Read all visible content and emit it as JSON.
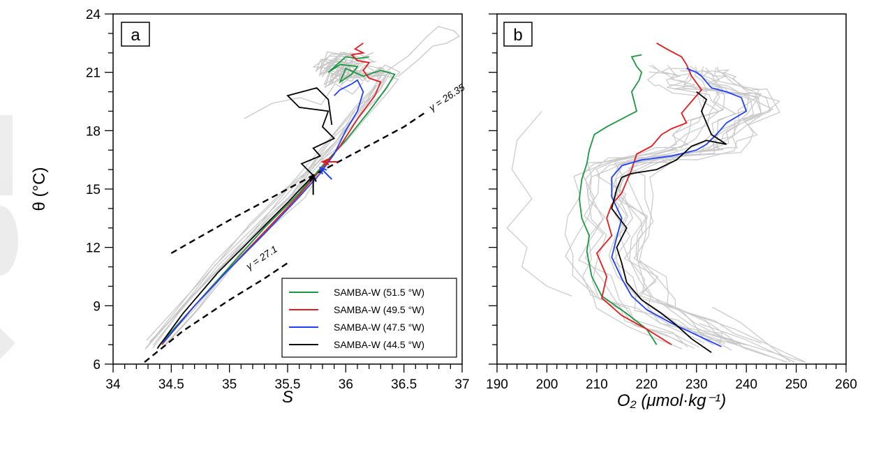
{
  "chart_data": [
    {
      "type": "line",
      "panel": "a",
      "xlabel": "S",
      "ylabel": "θ (°C)",
      "xlim": [
        34,
        37
      ],
      "ylim": [
        6,
        24
      ],
      "xticks": [
        34,
        34.5,
        35,
        35.5,
        36,
        36.5,
        37
      ],
      "xtick_labels": [
        "34",
        "34.5",
        "35",
        "35.5",
        "36",
        "36.5",
        "37"
      ],
      "yticks": [
        6,
        9,
        12,
        15,
        18,
        21,
        24
      ],
      "ytick_labels": [
        "6",
        "9",
        "12",
        "15",
        "18",
        "21",
        "24"
      ],
      "legend": {
        "position": "lower-right",
        "entries": [
          "SAMBA-W (51.5 °W)",
          "SAMBA-W (49.5 °W)",
          "SAMBA-W (47.5 °W)",
          "SAMBA-W (44.5 °W)"
        ]
      },
      "isopycnals": [
        {
          "label": "γ = 26.35",
          "x": [
            34.5,
            35.0,
            35.5,
            36.0,
            36.5,
            36.7
          ],
          "y": [
            11.7,
            13.4,
            15.0,
            16.6,
            18.2,
            19.0
          ]
        },
        {
          "label": "γ = 27.1",
          "x": [
            34.27,
            34.6,
            35.0,
            35.3,
            35.5
          ],
          "y": [
            6.1,
            7.7,
            9.3,
            10.4,
            11.2
          ]
        }
      ],
      "arrows": [
        {
          "color": "#e41a1c",
          "tip": [
            35.8,
            16.4
          ],
          "from": [
            35.93,
            16.4
          ]
        },
        {
          "color": "#1f3fff",
          "tip": [
            35.78,
            16.1
          ],
          "from": [
            35.88,
            15.5
          ]
        },
        {
          "color": "#000000",
          "tip": [
            35.72,
            15.7
          ],
          "from": [
            35.72,
            14.7
          ]
        }
      ],
      "series": [
        {
          "name": "SAMBA-W (51.5 °W)",
          "color": "#1a9641",
          "x": [
            34.4,
            34.7,
            35.0,
            35.3,
            35.6,
            35.8,
            36.0,
            36.2,
            36.35,
            36.42,
            36.3,
            36.15,
            36.0,
            35.95,
            36.05,
            36.1,
            35.95,
            35.85,
            36.0,
            36.1,
            36.2
          ],
          "y": [
            7.0,
            9.0,
            11.0,
            13.0,
            14.8,
            16.2,
            17.5,
            19.0,
            20.2,
            20.9,
            21.1,
            20.8,
            21.2,
            20.5,
            20.9,
            21.3,
            21.4,
            21.0,
            21.8,
            21.7,
            21.8
          ]
        },
        {
          "name": "SAMBA-W (49.5 °W)",
          "color": "#e41a1c",
          "x": [
            34.42,
            34.7,
            35.0,
            35.3,
            35.6,
            35.8,
            35.95,
            36.1,
            36.25,
            36.3,
            36.2,
            36.15,
            36.2,
            36.1,
            36.05,
            36.15,
            36.08,
            36.15
          ],
          "y": [
            7.0,
            9.0,
            10.9,
            12.8,
            14.7,
            16.1,
            17.2,
            18.6,
            19.8,
            20.5,
            20.7,
            21.1,
            21.5,
            21.6,
            21.9,
            22.0,
            22.2,
            22.5
          ]
        },
        {
          "name": "SAMBA-W (47.5 °W)",
          "color": "#1f3fff",
          "x": [
            34.43,
            34.7,
            35.0,
            35.3,
            35.6,
            35.78,
            35.9,
            36.0,
            36.1,
            36.15,
            36.1,
            36.05,
            35.95,
            35.9
          ],
          "y": [
            7.1,
            9.0,
            10.9,
            12.7,
            14.6,
            15.8,
            16.8,
            18.0,
            19.0,
            20.0,
            20.6,
            20.4,
            20.1,
            19.8
          ]
        },
        {
          "name": "SAMBA-W (44.5 °W)",
          "color": "#000000",
          "x": [
            34.38,
            34.6,
            34.9,
            35.2,
            35.5,
            35.72,
            35.62,
            35.78,
            35.72,
            35.9,
            35.8,
            35.85,
            35.6,
            35.5,
            35.75,
            35.85,
            35.88
          ],
          "y": [
            6.8,
            8.6,
            10.7,
            12.5,
            14.3,
            15.7,
            16.3,
            16.7,
            17.1,
            17.6,
            18.2,
            19.0,
            19.2,
            19.8,
            20.2,
            19.6,
            18.3
          ]
        }
      ]
    },
    {
      "type": "line",
      "panel": "b",
      "xlabel": "O₂ (μmol·kg⁻¹)",
      "ylabel": "",
      "xlim": [
        190,
        260
      ],
      "ylim": [
        6,
        24
      ],
      "xticks": [
        190,
        200,
        210,
        220,
        230,
        240,
        250,
        260
      ],
      "xtick_labels": [
        "190",
        "200",
        "210",
        "220",
        "230",
        "240",
        "250",
        "260"
      ],
      "yticks": [
        6,
        9,
        12,
        15,
        18,
        21,
        24
      ],
      "series": [
        {
          "name": "SAMBA-W (51.5 °W)",
          "color": "#1a9641",
          "x": [
            222,
            220,
            216,
            211,
            209,
            208,
            208.5,
            207,
            206.5,
            207,
            208,
            208.5,
            209.5,
            212,
            215,
            218,
            217,
            218.5,
            219,
            218,
            217,
            219
          ],
          "y": [
            7.0,
            7.8,
            8.6,
            9.5,
            10.5,
            11.8,
            12.6,
            13.5,
            14.5,
            15.5,
            16.3,
            17.0,
            17.8,
            18.2,
            18.6,
            19.0,
            20.0,
            20.6,
            21.0,
            21.3,
            21.8,
            21.9
          ]
        },
        {
          "name": "SAMBA-W (49.5 °W)",
          "color": "#e41a1c",
          "x": [
            225,
            220,
            215,
            211,
            212,
            210,
            213,
            212,
            213,
            215,
            216,
            217,
            218,
            221,
            223,
            225,
            228,
            227,
            229,
            231,
            229,
            228,
            227,
            224,
            222
          ],
          "y": [
            7.0,
            7.8,
            8.5,
            9.4,
            10.5,
            11.7,
            12.6,
            13.5,
            14.2,
            14.8,
            15.4,
            16.0,
            16.8,
            17.2,
            17.8,
            18.1,
            18.4,
            18.9,
            19.5,
            20.1,
            20.8,
            21.4,
            21.8,
            22.2,
            22.5
          ]
        },
        {
          "name": "SAMBA-W (47.5 °W)",
          "color": "#1f3fff",
          "x": [
            235,
            230,
            225,
            220,
            217,
            215,
            213,
            214,
            215,
            213,
            213,
            215,
            219,
            225,
            230,
            232,
            234,
            236,
            240,
            239,
            236,
            233,
            232,
            231,
            230,
            228
          ],
          "y": [
            6.9,
            7.5,
            8.1,
            8.8,
            9.5,
            10.4,
            11.5,
            12.5,
            13.5,
            14.6,
            15.6,
            16.2,
            16.5,
            16.7,
            17.0,
            17.3,
            17.8,
            18.4,
            19.0,
            19.7,
            20.0,
            20.2,
            20.5,
            20.8,
            21.0,
            21.2
          ]
        },
        {
          "name": "SAMBA-W (44.5 °W)",
          "color": "#000000",
          "x": [
            233,
            229,
            226,
            223,
            219,
            216,
            215,
            214,
            216,
            213,
            214,
            215,
            217,
            222,
            226,
            229,
            232,
            234,
            236,
            233,
            232,
            231,
            232,
            230
          ],
          "y": [
            6.6,
            7.3,
            8.0,
            8.6,
            9.3,
            10.2,
            11.2,
            12.0,
            13.0,
            14.0,
            15.0,
            15.6,
            15.8,
            16.0,
            16.5,
            17.2,
            17.5,
            17.4,
            17.3,
            17.8,
            18.4,
            19.0,
            19.6,
            20.0
          ]
        }
      ]
    }
  ]
}
